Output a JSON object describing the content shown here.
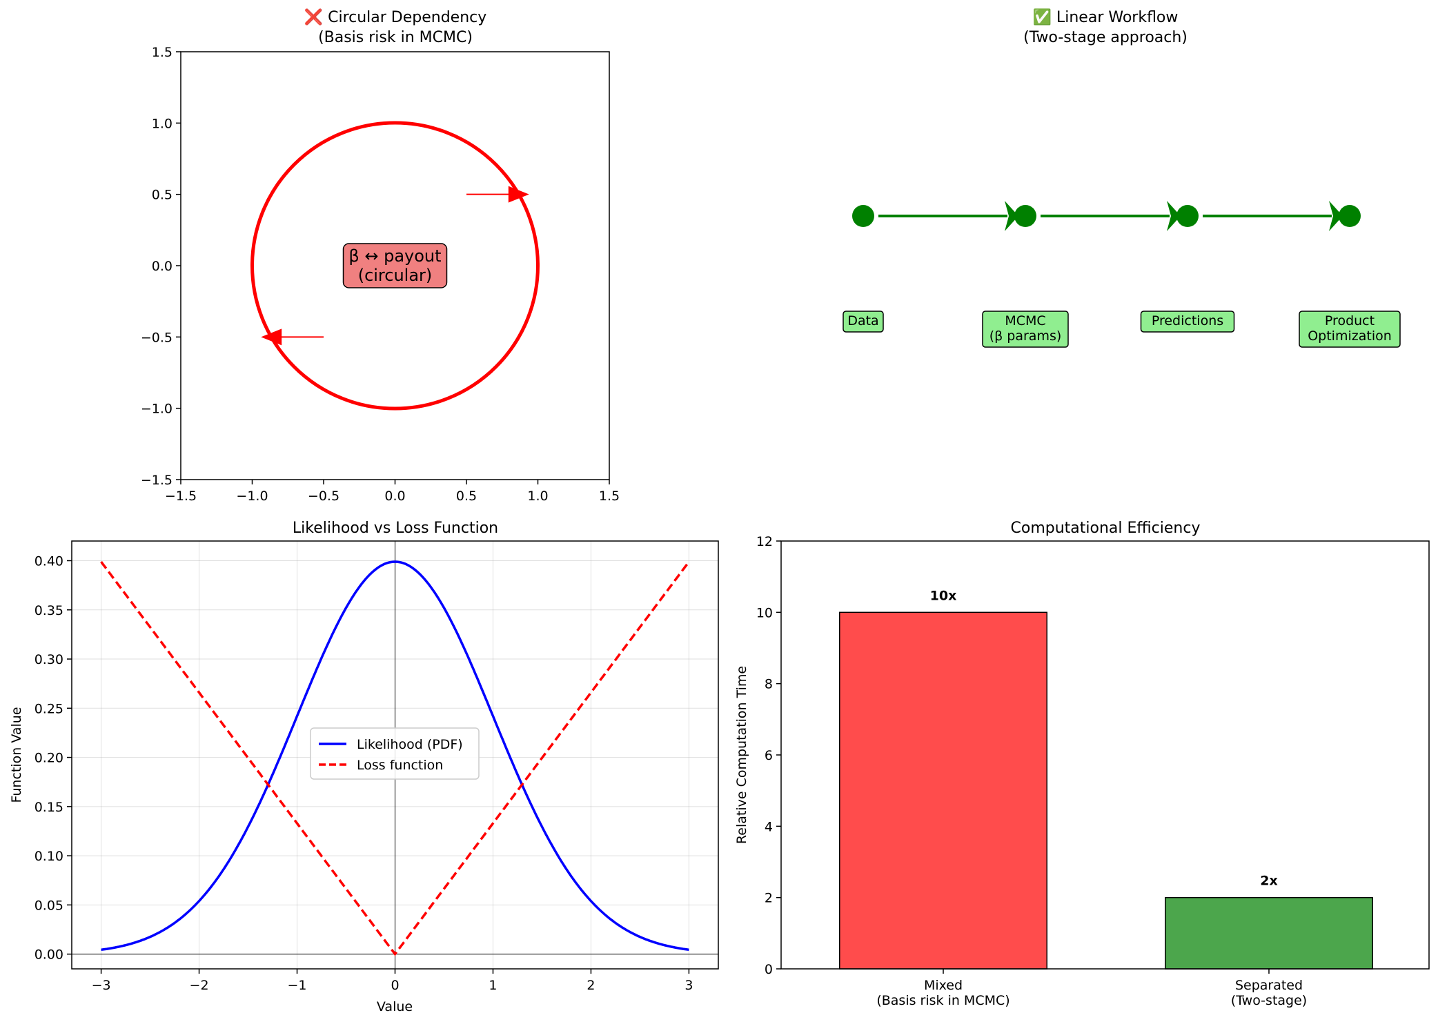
{
  "chart_data": [
    {
      "type": "diagram",
      "title": "❌ Circular Dependency",
      "subtitle": "(Basis risk in MCMC)",
      "xlim": [
        -1.5,
        1.5
      ],
      "ylim": [
        -1.5,
        1.5
      ],
      "xticks": [
        "−1.5",
        "−1.0",
        "−0.5",
        "0.0",
        "0.5",
        "1.0",
        "1.5"
      ],
      "yticks": [
        "−1.5",
        "−1.0",
        "−0.5",
        "0.0",
        "0.5",
        "1.0",
        "1.5"
      ],
      "circle": {
        "cx": 0,
        "cy": 0,
        "r": 1,
        "color": "#ff0000"
      },
      "arrows": [
        {
          "x": 0.5,
          "y": 0.5,
          "dx": 0.4,
          "dy": 0
        },
        {
          "x": -0.5,
          "y": -0.5,
          "dx": -0.4,
          "dy": 0
        }
      ],
      "center_label": [
        "β ↔ payout",
        "(circular)"
      ],
      "center_label_bg": "#f08080"
    },
    {
      "type": "diagram",
      "title": "✅ Linear Workflow",
      "subtitle": "(Two-stage approach)",
      "color": "#008000",
      "label_bg": "#90ee90",
      "nodes": [
        {
          "label": [
            "Data"
          ]
        },
        {
          "label": [
            "MCMC",
            "(β params)"
          ]
        },
        {
          "label": [
            "Predictions"
          ]
        },
        {
          "label": [
            "Product",
            "Optimization"
          ]
        }
      ]
    },
    {
      "type": "line",
      "title": "Likelihood vs Loss Function",
      "xlabel": "Value",
      "ylabel": "Function Value",
      "xlim": [
        -3.3,
        3.3
      ],
      "ylim": [
        -0.015,
        0.42
      ],
      "xticks": [
        "−3",
        "−2",
        "−1",
        "0",
        "1",
        "2",
        "3"
      ],
      "yticks": [
        "0.00",
        "0.05",
        "0.10",
        "0.15",
        "0.20",
        "0.25",
        "0.30",
        "0.35",
        "0.40"
      ],
      "grid": true,
      "legend_position": "center",
      "series": [
        {
          "name": "Likelihood (PDF)",
          "function": "normal_pdf",
          "x_range": [
            -3,
            3
          ],
          "color": "#0000ff",
          "style": "solid"
        },
        {
          "name": "Loss function",
          "function": "abs_x_times_0.1333",
          "x_range": [
            -3,
            3
          ],
          "color": "#ff0000",
          "style": "dashed"
        }
      ]
    },
    {
      "type": "bar",
      "title": "Computational Efficiency",
      "ylabel": "Relative Computation Time",
      "ylim": [
        0,
        12
      ],
      "yticks": [
        "0",
        "2",
        "4",
        "6",
        "8",
        "10",
        "12"
      ],
      "categories": [
        [
          "Mixed",
          "(Basis risk in MCMC)"
        ],
        [
          "Separated",
          "(Two-stage)"
        ]
      ],
      "values": [
        10,
        2
      ],
      "labels": [
        "10x",
        "2x"
      ],
      "colors": [
        "#ff4c4c",
        "#4ca64c"
      ]
    }
  ]
}
